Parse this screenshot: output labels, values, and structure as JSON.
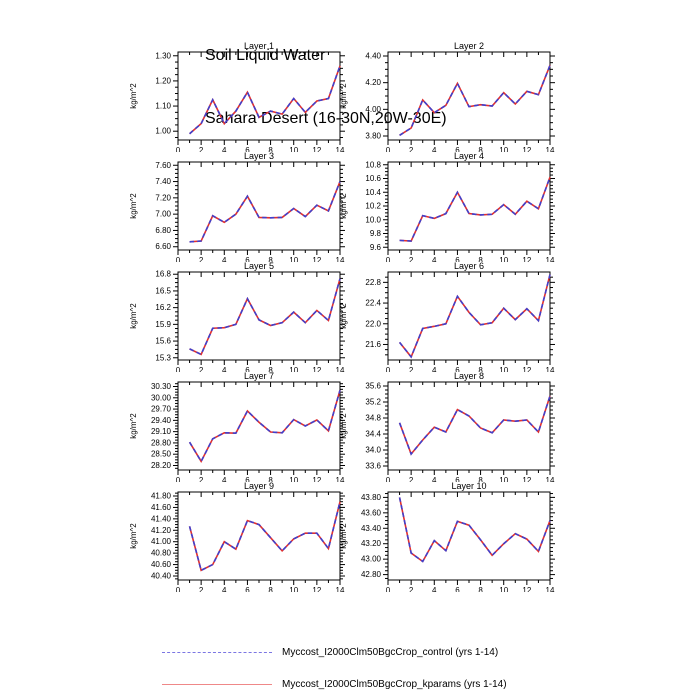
{
  "title": {
    "line1": "Soil Liquid Water",
    "line2": "Sahara Desert (16-30N,20W-30E)"
  },
  "ylabel": "kg/m^2",
  "colors": {
    "control_line": "#4040cc",
    "kparams_line": "#e03030",
    "legend_control": "#7b76e3",
    "legend_kparams": "#ef8888",
    "axis": "#000000"
  },
  "legend": {
    "entries": [
      {
        "label": "Myccost_I2000Clm50BgcCrop_control (yrs 1-14)",
        "style": "dashed",
        "color": "#7b76e3"
      },
      {
        "label": "Myccost_I2000Clm50BgcCrop_kparams (yrs 1-14)",
        "style": "solid",
        "color": "#ef8888"
      }
    ]
  },
  "chart_data": [
    {
      "type": "line",
      "title": "Layer 1",
      "ylabel": "kg/m^2",
      "x": [
        1,
        2,
        3,
        4,
        5,
        6,
        7,
        8,
        9,
        10,
        11,
        12,
        13,
        14
      ],
      "xlim": [
        0,
        14
      ],
      "xticks": [
        0,
        2,
        4,
        6,
        8,
        10,
        12,
        14
      ],
      "ylim": [
        0.965,
        1.315
      ],
      "yticks": [
        1.0,
        1.1,
        1.2,
        1.3
      ],
      "ytick_labels": [
        "1.00",
        "1.10",
        "1.20",
        "1.30"
      ],
      "series": [
        {
          "name": "Myccost_I2000Clm50BgcCrop_control (yrs 1-14)",
          "style": "dashed",
          "values": [
            0.99,
            1.03,
            1.125,
            1.03,
            1.08,
            1.155,
            1.055,
            1.08,
            1.068,
            1.13,
            1.075,
            1.12,
            1.13,
            1.26
          ]
        },
        {
          "name": "Myccost_I2000Clm50BgcCrop_kparams (yrs 1-14)",
          "style": "solid",
          "values": [
            0.99,
            1.03,
            1.125,
            1.03,
            1.08,
            1.155,
            1.055,
            1.08,
            1.068,
            1.13,
            1.075,
            1.12,
            1.13,
            1.26
          ]
        }
      ]
    },
    {
      "type": "line",
      "title": "Layer 2",
      "ylabel": "kg/m^2",
      "x": [
        1,
        2,
        3,
        4,
        5,
        6,
        7,
        8,
        9,
        10,
        11,
        12,
        13,
        14
      ],
      "xlim": [
        0,
        14
      ],
      "xticks": [
        0,
        2,
        4,
        6,
        8,
        10,
        12,
        14
      ],
      "ylim": [
        3.77,
        4.43
      ],
      "yticks": [
        3.8,
        4.0,
        4.2,
        4.4
      ],
      "ytick_labels": [
        "3.80",
        "4.00",
        "4.20",
        "4.40"
      ],
      "series": [
        {
          "name": "Myccost_I2000Clm50BgcCrop_control (yrs 1-14)",
          "style": "dashed",
          "values": [
            3.805,
            3.86,
            4.07,
            3.975,
            4.03,
            4.195,
            4.02,
            4.035,
            4.025,
            4.125,
            4.04,
            4.135,
            4.11,
            4.33
          ]
        },
        {
          "name": "Myccost_I2000Clm50BgcCrop_kparams (yrs 1-14)",
          "style": "solid",
          "values": [
            3.805,
            3.86,
            4.07,
            3.975,
            4.03,
            4.195,
            4.02,
            4.035,
            4.025,
            4.125,
            4.04,
            4.135,
            4.11,
            4.33
          ]
        }
      ]
    },
    {
      "type": "line",
      "title": "Layer 3",
      "ylabel": "kg/m^2",
      "x": [
        1,
        2,
        3,
        4,
        5,
        6,
        7,
        8,
        9,
        10,
        11,
        12,
        13,
        14
      ],
      "xlim": [
        0,
        14
      ],
      "xticks": [
        0,
        2,
        4,
        6,
        8,
        10,
        12,
        14
      ],
      "ylim": [
        6.56,
        7.64
      ],
      "yticks": [
        6.6,
        6.8,
        7.0,
        7.2,
        7.4,
        7.6
      ],
      "ytick_labels": [
        "6.60",
        "6.80",
        "7.00",
        "7.20",
        "7.40",
        "7.60"
      ],
      "series": [
        {
          "name": "Myccost_I2000Clm50BgcCrop_control (yrs 1-14)",
          "style": "dashed",
          "values": [
            6.66,
            6.67,
            6.98,
            6.9,
            7.0,
            7.22,
            6.96,
            6.955,
            6.96,
            7.07,
            6.97,
            7.11,
            7.04,
            7.4
          ]
        },
        {
          "name": "Myccost_I2000Clm50BgcCrop_kparams (yrs 1-14)",
          "style": "solid",
          "values": [
            6.66,
            6.67,
            6.98,
            6.9,
            7.0,
            7.22,
            6.96,
            6.955,
            6.96,
            7.07,
            6.97,
            7.11,
            7.04,
            7.4
          ]
        }
      ]
    },
    {
      "type": "line",
      "title": "Layer 4",
      "ylabel": "kg/m^2",
      "x": [
        1,
        2,
        3,
        4,
        5,
        6,
        7,
        8,
        9,
        10,
        11,
        12,
        13,
        14
      ],
      "xlim": [
        0,
        14
      ],
      "xticks": [
        0,
        2,
        4,
        6,
        8,
        10,
        12,
        14
      ],
      "ylim": [
        9.56,
        10.84
      ],
      "yticks": [
        9.6,
        9.8,
        10.0,
        10.2,
        10.4,
        10.6,
        10.8
      ],
      "ytick_labels": [
        "9.6",
        "9.8",
        "10.0",
        "10.2",
        "10.4",
        "10.6",
        "10.8"
      ],
      "series": [
        {
          "name": "Myccost_I2000Clm50BgcCrop_control (yrs 1-14)",
          "style": "dashed",
          "values": [
            9.7,
            9.69,
            10.06,
            10.02,
            10.09,
            10.4,
            10.09,
            10.07,
            10.08,
            10.22,
            10.08,
            10.27,
            10.16,
            10.62
          ]
        },
        {
          "name": "Myccost_I2000Clm50BgcCrop_kparams (yrs 1-14)",
          "style": "solid",
          "values": [
            9.7,
            9.69,
            10.06,
            10.02,
            10.09,
            10.4,
            10.09,
            10.07,
            10.08,
            10.22,
            10.08,
            10.27,
            10.16,
            10.62
          ]
        }
      ]
    },
    {
      "type": "line",
      "title": "Layer 5",
      "ylabel": "kg/m^2",
      "x": [
        1,
        2,
        3,
        4,
        5,
        6,
        7,
        8,
        9,
        10,
        11,
        12,
        13,
        14
      ],
      "xlim": [
        0,
        14
      ],
      "xticks": [
        0,
        2,
        4,
        6,
        8,
        10,
        12,
        14
      ],
      "ylim": [
        15.26,
        16.84
      ],
      "yticks": [
        15.3,
        15.6,
        15.9,
        16.2,
        16.5,
        16.8
      ],
      "ytick_labels": [
        "15.3",
        "15.6",
        "15.9",
        "16.2",
        "16.5",
        "16.8"
      ],
      "series": [
        {
          "name": "Myccost_I2000Clm50BgcCrop_control (yrs 1-14)",
          "style": "dashed",
          "values": [
            15.46,
            15.36,
            15.83,
            15.84,
            15.9,
            16.36,
            15.98,
            15.88,
            15.93,
            16.12,
            15.93,
            16.15,
            15.97,
            16.72
          ]
        },
        {
          "name": "Myccost_I2000Clm50BgcCrop_kparams (yrs 1-14)",
          "style": "solid",
          "values": [
            15.46,
            15.36,
            15.83,
            15.84,
            15.9,
            16.36,
            15.98,
            15.88,
            15.93,
            16.12,
            15.93,
            16.15,
            15.97,
            16.72
          ]
        }
      ]
    },
    {
      "type": "line",
      "title": "Layer 6",
      "ylabel": "kg/m^2",
      "x": [
        1,
        2,
        3,
        4,
        5,
        6,
        7,
        8,
        9,
        10,
        11,
        12,
        13,
        14
      ],
      "xlim": [
        0,
        14
      ],
      "xticks": [
        0,
        2,
        4,
        6,
        8,
        10,
        12,
        14
      ],
      "ylim": [
        21.3,
        23.0
      ],
      "yticks": [
        21.6,
        22.0,
        22.4,
        22.8
      ],
      "ytick_labels": [
        "21.6",
        "22.0",
        "22.4",
        "22.8"
      ],
      "series": [
        {
          "name": "Myccost_I2000Clm50BgcCrop_control (yrs 1-14)",
          "style": "dashed",
          "values": [
            21.64,
            21.36,
            21.91,
            21.95,
            22.0,
            22.53,
            22.22,
            21.98,
            22.02,
            22.3,
            22.08,
            22.29,
            22.06,
            22.95
          ]
        },
        {
          "name": "Myccost_I2000Clm50BgcCrop_kparams (yrs 1-14)",
          "style": "solid",
          "values": [
            21.64,
            21.36,
            21.91,
            21.95,
            22.0,
            22.53,
            22.22,
            21.98,
            22.02,
            22.3,
            22.08,
            22.29,
            22.06,
            22.95
          ]
        }
      ]
    },
    {
      "type": "line",
      "title": "Layer 7",
      "ylabel": "kg/m^2",
      "x": [
        1,
        2,
        3,
        4,
        5,
        6,
        7,
        8,
        9,
        10,
        11,
        12,
        13,
        14
      ],
      "xlim": [
        0,
        14
      ],
      "xticks": [
        0,
        2,
        4,
        6,
        8,
        10,
        12,
        14
      ],
      "ylim": [
        28.08,
        30.42
      ],
      "yticks": [
        28.2,
        28.5,
        28.8,
        29.1,
        29.4,
        29.7,
        30.0,
        30.3
      ],
      "ytick_labels": [
        "28.20",
        "28.50",
        "28.80",
        "29.10",
        "29.40",
        "29.70",
        "30.00",
        "30.30"
      ],
      "series": [
        {
          "name": "Myccost_I2000Clm50BgcCrop_control (yrs 1-14)",
          "style": "dashed",
          "values": [
            28.82,
            28.31,
            28.91,
            29.07,
            29.06,
            29.65,
            29.35,
            29.09,
            29.07,
            29.42,
            29.25,
            29.41,
            29.12,
            30.2
          ]
        },
        {
          "name": "Myccost_I2000Clm50BgcCrop_kparams (yrs 1-14)",
          "style": "solid",
          "values": [
            28.82,
            28.31,
            28.91,
            29.07,
            29.06,
            29.65,
            29.35,
            29.09,
            29.07,
            29.42,
            29.25,
            29.41,
            29.12,
            30.2
          ]
        }
      ]
    },
    {
      "type": "line",
      "title": "Layer 8",
      "ylabel": "kg/m^2",
      "x": [
        1,
        2,
        3,
        4,
        5,
        6,
        7,
        8,
        9,
        10,
        11,
        12,
        13,
        14
      ],
      "xlim": [
        0,
        14
      ],
      "xticks": [
        0,
        2,
        4,
        6,
        8,
        10,
        12,
        14
      ],
      "ylim": [
        33.5,
        35.7
      ],
      "yticks": [
        33.6,
        34.0,
        34.4,
        34.8,
        35.2,
        35.6
      ],
      "ytick_labels": [
        "33.6",
        "34.0",
        "34.4",
        "34.8",
        "35.2",
        "35.6"
      ],
      "series": [
        {
          "name": "Myccost_I2000Clm50BgcCrop_control (yrs 1-14)",
          "style": "dashed",
          "values": [
            34.68,
            33.9,
            34.25,
            34.57,
            34.45,
            35.01,
            34.85,
            34.55,
            34.43,
            34.75,
            34.72,
            34.75,
            34.45,
            35.35
          ]
        },
        {
          "name": "Myccost_I2000Clm50BgcCrop_kparams (yrs 1-14)",
          "style": "solid",
          "values": [
            34.68,
            33.9,
            34.25,
            34.57,
            34.45,
            35.01,
            34.85,
            34.55,
            34.43,
            34.75,
            34.72,
            34.75,
            34.45,
            35.35
          ]
        }
      ]
    },
    {
      "type": "line",
      "title": "Layer 9",
      "ylabel": "kg/m^2",
      "x": [
        1,
        2,
        3,
        4,
        5,
        6,
        7,
        8,
        9,
        10,
        11,
        12,
        13,
        14
      ],
      "xlim": [
        0,
        14
      ],
      "xticks": [
        0,
        2,
        4,
        6,
        8,
        10,
        12,
        14
      ],
      "ylim": [
        40.33,
        41.87
      ],
      "yticks": [
        40.4,
        40.6,
        40.8,
        41.0,
        41.2,
        41.4,
        41.6,
        41.8
      ],
      "ytick_labels": [
        "40.40",
        "40.60",
        "40.80",
        "41.00",
        "41.20",
        "41.40",
        "41.60",
        "41.80"
      ],
      "series": [
        {
          "name": "Myccost_I2000Clm50BgcCrop_control (yrs 1-14)",
          "style": "dashed",
          "values": [
            41.27,
            40.5,
            40.6,
            41.0,
            40.87,
            41.37,
            41.3,
            41.07,
            40.84,
            41.05,
            41.15,
            41.15,
            40.88,
            41.7
          ]
        },
        {
          "name": "Myccost_I2000Clm50BgcCrop_kparams (yrs 1-14)",
          "style": "solid",
          "values": [
            41.27,
            40.5,
            40.6,
            41.0,
            40.87,
            41.37,
            41.3,
            41.07,
            40.84,
            41.05,
            41.15,
            41.15,
            40.88,
            41.7
          ]
        }
      ]
    },
    {
      "type": "line",
      "title": "Layer 10",
      "ylabel": "kg/m^2",
      "x": [
        1,
        2,
        3,
        4,
        5,
        6,
        7,
        8,
        9,
        10,
        11,
        12,
        13,
        14
      ],
      "xlim": [
        0,
        14
      ],
      "xticks": [
        0,
        2,
        4,
        6,
        8,
        10,
        12,
        14
      ],
      "ylim": [
        42.73,
        43.87
      ],
      "yticks": [
        42.8,
        43.0,
        43.2,
        43.4,
        43.6,
        43.8
      ],
      "ytick_labels": [
        "42.80",
        "43.00",
        "43.20",
        "43.40",
        "43.60",
        "43.80"
      ],
      "series": [
        {
          "name": "Myccost_I2000Clm50BgcCrop_control (yrs 1-14)",
          "style": "dashed",
          "values": [
            43.8,
            43.08,
            42.97,
            43.24,
            43.11,
            43.49,
            43.44,
            43.25,
            43.05,
            43.2,
            43.33,
            43.26,
            43.1,
            43.5
          ]
        },
        {
          "name": "Myccost_I2000Clm50BgcCrop_kparams (yrs 1-14)",
          "style": "solid",
          "values": [
            43.8,
            43.08,
            42.97,
            43.24,
            43.11,
            43.49,
            43.44,
            43.25,
            43.05,
            43.2,
            43.33,
            43.26,
            43.1,
            43.5
          ]
        }
      ]
    }
  ]
}
